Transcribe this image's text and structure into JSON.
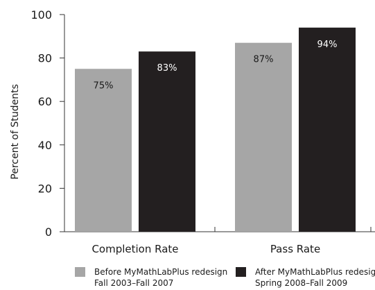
{
  "chart_data": {
    "type": "bar",
    "ylabel": "Percent of Students",
    "ylim": [
      0,
      100
    ],
    "yticks": [
      0,
      20,
      40,
      60,
      80,
      100
    ],
    "categories": [
      "Completion Rate",
      "Pass Rate"
    ],
    "series": [
      {
        "name": "Before MyMathLabPlus redesign",
        "legend_line2": "Fall 2003–Fall 2007",
        "values": [
          75,
          87
        ],
        "labels": [
          "75%",
          "87%"
        ],
        "color": "#a6a6a6",
        "label_color": "#1a1a1a"
      },
      {
        "name": "After MyMathLabPlus redesign",
        "legend_line2": "Spring 2008–Fall 2009",
        "values": [
          83,
          94
        ],
        "labels": [
          "83%",
          "94%"
        ],
        "color": "#231f20",
        "label_color": "#ffffff"
      }
    ],
    "grid": false,
    "legend_position": "bottom"
  }
}
